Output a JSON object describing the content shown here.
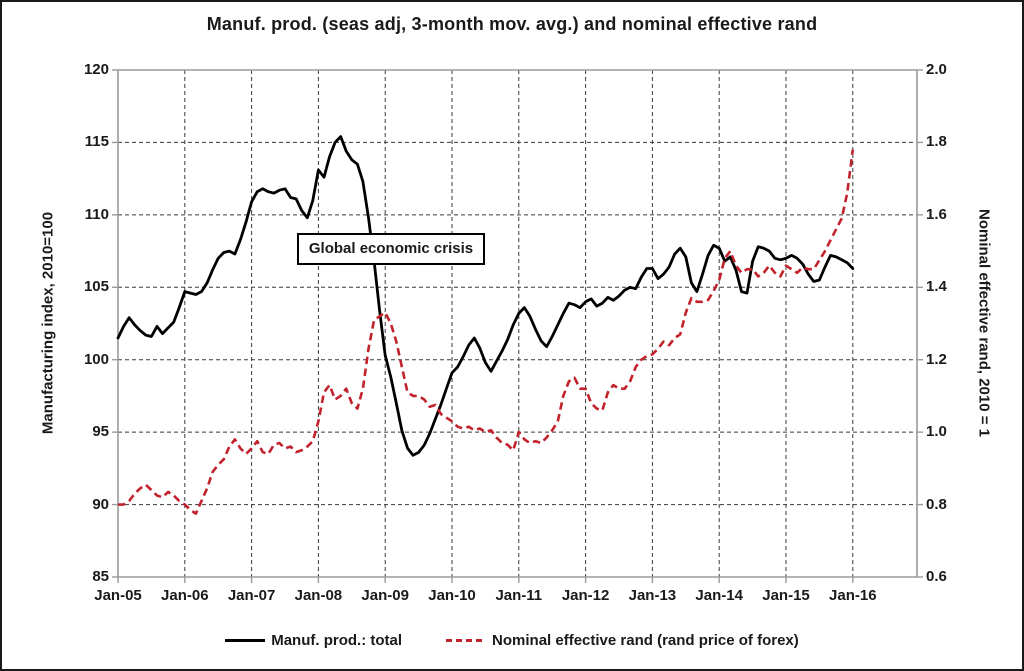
{
  "title": "Manuf. prod. (seas adj, 3-month mov. avg.) and nominal effective rand",
  "annotation": "Global economic crisis",
  "legend": [
    {
      "label": "Manuf. prod.: total",
      "style": "solid",
      "color": "#000000"
    },
    {
      "label": "Nominal effective rand (rand price of forex)",
      "style": "dashed",
      "color": "#c2222c"
    }
  ],
  "colors": {
    "series_manuf": "#000000",
    "series_rand": "#c2222c",
    "gridline": "#3a3a3a",
    "axis": "#9a9a9a",
    "text": "#1a1a1a",
    "background": "#ffffff"
  },
  "chart_data": {
    "type": "line",
    "title": "Manuf. prod. (seas adj, 3-month mov. avg.) and nominal effective rand",
    "grid": true,
    "legend_position": "bottom",
    "x_unit": "month",
    "x_start": "Jan-05",
    "x_end": "Jan-16",
    "points_per_year": 12,
    "x_tick_labels": [
      "Jan-05",
      "Jan-06",
      "Jan-07",
      "Jan-08",
      "Jan-09",
      "Jan-10",
      "Jan-11",
      "Jan-12",
      "Jan-13",
      "Jan-14",
      "Jan-15",
      "Jan-16"
    ],
    "left_axis": {
      "label": "Manufacturing index, 2010=100",
      "range": [
        85,
        120
      ],
      "ticks": [
        85,
        90,
        95,
        100,
        105,
        110,
        115,
        120
      ]
    },
    "right_axis": {
      "label": "Nominal effective rand, 2010 = 1",
      "range": [
        0.6,
        2.0
      ],
      "ticks": [
        0.6,
        0.8,
        1.0,
        1.2,
        1.4,
        1.6,
        1.8,
        2.0
      ]
    },
    "series": [
      {
        "name": "Manuf. prod.: total",
        "axis": "left",
        "color": "#000000",
        "line_style": "solid",
        "values": [
          101.5,
          102.3,
          102.9,
          102.4,
          102.0,
          101.7,
          101.6,
          102.3,
          101.8,
          102.2,
          102.6,
          103.6,
          104.7,
          104.6,
          104.5,
          104.7,
          105.3,
          106.2,
          107.0,
          107.4,
          107.5,
          107.3,
          108.3,
          109.5,
          110.9,
          111.6,
          111.8,
          111.6,
          111.5,
          111.7,
          111.8,
          111.2,
          111.1,
          110.3,
          109.8,
          111.0,
          113.1,
          112.6,
          114.0,
          115.0,
          115.4,
          114.4,
          113.8,
          113.5,
          112.3,
          109.8,
          106.8,
          103.4,
          100.3,
          98.8,
          97.0,
          95.1,
          93.9,
          93.4,
          93.6,
          94.1,
          94.9,
          95.9,
          96.9,
          98.0,
          99.1,
          99.5,
          100.2,
          101.0,
          101.5,
          100.8,
          99.8,
          99.2,
          99.9,
          100.6,
          101.4,
          102.4,
          103.2,
          103.6,
          103.0,
          102.1,
          101.3,
          100.9,
          101.6,
          102.4,
          103.2,
          103.9,
          103.8,
          103.6,
          104.0,
          104.2,
          103.7,
          103.9,
          104.3,
          104.1,
          104.4,
          104.8,
          105.0,
          104.9,
          105.7,
          106.3,
          106.3,
          105.6,
          105.9,
          106.4,
          107.3,
          107.7,
          107.1,
          105.3,
          104.7,
          105.9,
          107.2,
          107.9,
          107.7,
          106.8,
          107.1,
          106.2,
          104.7,
          104.6,
          106.8,
          107.8,
          107.7,
          107.5,
          107.0,
          106.9,
          107.0,
          107.2,
          107.0,
          106.6,
          105.9,
          105.4,
          105.5,
          106.4,
          107.2,
          107.1,
          106.9,
          106.7,
          106.3
        ]
      },
      {
        "name": "Nominal effective rand (rand price of forex)",
        "axis": "right",
        "color": "#c2222c",
        "line_style": "dashed",
        "values": [
          0.8,
          0.8,
          0.81,
          0.83,
          0.845,
          0.855,
          0.84,
          0.825,
          0.82,
          0.835,
          0.825,
          0.81,
          0.8,
          0.785,
          0.775,
          0.81,
          0.845,
          0.89,
          0.91,
          0.925,
          0.96,
          0.98,
          0.955,
          0.94,
          0.955,
          0.975,
          0.945,
          0.94,
          0.965,
          0.97,
          0.955,
          0.96,
          0.945,
          0.95,
          0.96,
          0.975,
          1.03,
          1.11,
          1.13,
          1.09,
          1.1,
          1.12,
          1.08,
          1.065,
          1.12,
          1.23,
          1.31,
          1.32,
          1.33,
          1.3,
          1.25,
          1.18,
          1.11,
          1.1,
          1.1,
          1.09,
          1.07,
          1.075,
          1.05,
          1.04,
          1.03,
          1.015,
          1.01,
          1.015,
          1.005,
          1.01,
          1.0,
          1.005,
          0.985,
          0.97,
          0.965,
          0.95,
          1.0,
          0.98,
          0.97,
          0.975,
          0.97,
          0.985,
          1.005,
          1.03,
          1.1,
          1.14,
          1.15,
          1.12,
          1.12,
          1.08,
          1.065,
          1.06,
          1.11,
          1.13,
          1.12,
          1.12,
          1.14,
          1.18,
          1.2,
          1.21,
          1.215,
          1.23,
          1.25,
          1.24,
          1.26,
          1.27,
          1.33,
          1.37,
          1.36,
          1.36,
          1.365,
          1.39,
          1.42,
          1.48,
          1.5,
          1.46,
          1.44,
          1.45,
          1.45,
          1.43,
          1.44,
          1.46,
          1.44,
          1.43,
          1.46,
          1.45,
          1.44,
          1.455,
          1.45,
          1.45,
          1.475,
          1.5,
          1.53,
          1.56,
          1.59,
          1.66,
          1.78
        ]
      }
    ]
  }
}
